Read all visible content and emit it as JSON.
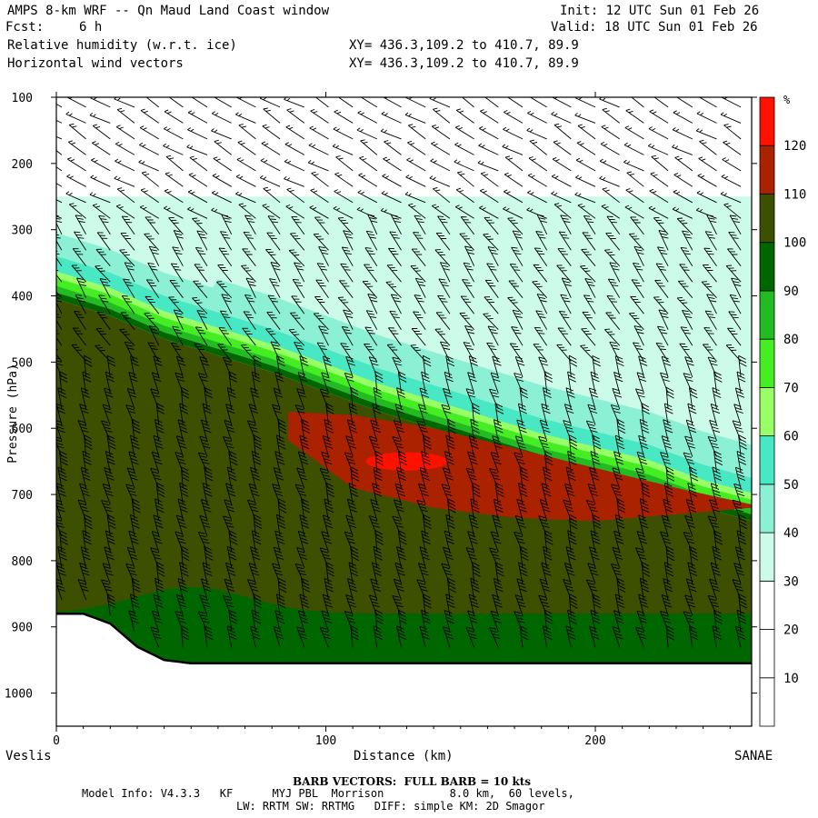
{
  "header": {
    "title": "AMPS 8-km WRF -- Qn Maud Land Coast window",
    "fcst_label": "Fcst:",
    "fcst_value": "6 h",
    "init": "Init: 12 UTC Sun 01 Feb 26",
    "valid": "Valid: 18 UTC Sun 01 Feb 26",
    "field1": "Relative humidity (w.r.t. ice)",
    "field2": "Horizontal wind vectors",
    "xy1": "XY= 436.3,109.2 to 410.7, 89.9",
    "xy2": "XY= 436.3,109.2 to 410.7, 89.9"
  },
  "footer": {
    "barb_note": "BARB VECTORS:  FULL BARB = 10 kts",
    "model_info": "Model Info: V4.3.3   KF      MYJ PBL  Morrison          8.0 km,  60 levels,",
    "model_info2": "LW: RRTM SW: RRTMG   DIFF: simple KM: 2D Smagor"
  },
  "chart_data": {
    "type": "heatmap",
    "title": "Relative humidity (w.r.t. ice) cross-section with horizontal wind barbs",
    "xlabel": "Distance (km)",
    "ylabel": "Pressure (hPa)",
    "x_start_label": "Veslis",
    "x_end_label": "SANAE",
    "xlim": [
      0,
      258
    ],
    "ylim": [
      1050,
      100
    ],
    "x_ticks": [
      0,
      100,
      200
    ],
    "y_ticks": [
      100,
      200,
      300,
      400,
      500,
      600,
      700,
      800,
      900,
      1000
    ],
    "colorbar": {
      "unit": "%",
      "levels": [
        10,
        20,
        30,
        40,
        50,
        60,
        70,
        80,
        90,
        100,
        110,
        120
      ],
      "colors": [
        "#ffffff",
        "#ffffff",
        "#ffffff",
        "#cdfbe9",
        "#8cf0d4",
        "#48e8c4",
        "#99ff66",
        "#44ee22",
        "#22bb22",
        "#006600",
        "#3d4f00",
        "#aa2200",
        "#ff1100"
      ]
    },
    "moist_layer_top_hpa": {
      "x": [
        0,
        20,
        40,
        60,
        80,
        100,
        120,
        140,
        160,
        180,
        200,
        220,
        240,
        258
      ],
      "p": [
        385,
        410,
        445,
        470,
        495,
        525,
        555,
        580,
        605,
        630,
        650,
        670,
        700,
        720
      ]
    },
    "red_core": {
      "x": [
        85,
        110,
        140,
        170,
        200,
        230,
        258
      ],
      "top_p": [
        575,
        580,
        600,
        630,
        660,
        690,
        715
      ],
      "bottom_p": [
        615,
        690,
        720,
        735,
        740,
        730,
        720
      ]
    },
    "terrain_surface_hpa": {
      "x": [
        0,
        10,
        20,
        30,
        40,
        50,
        60,
        80,
        100,
        150,
        200,
        258
      ],
      "p": [
        880,
        880,
        895,
        930,
        950,
        955,
        955,
        955,
        955,
        955,
        955,
        955
      ]
    },
    "barb_note": "FULL BARB = 10 kts"
  }
}
